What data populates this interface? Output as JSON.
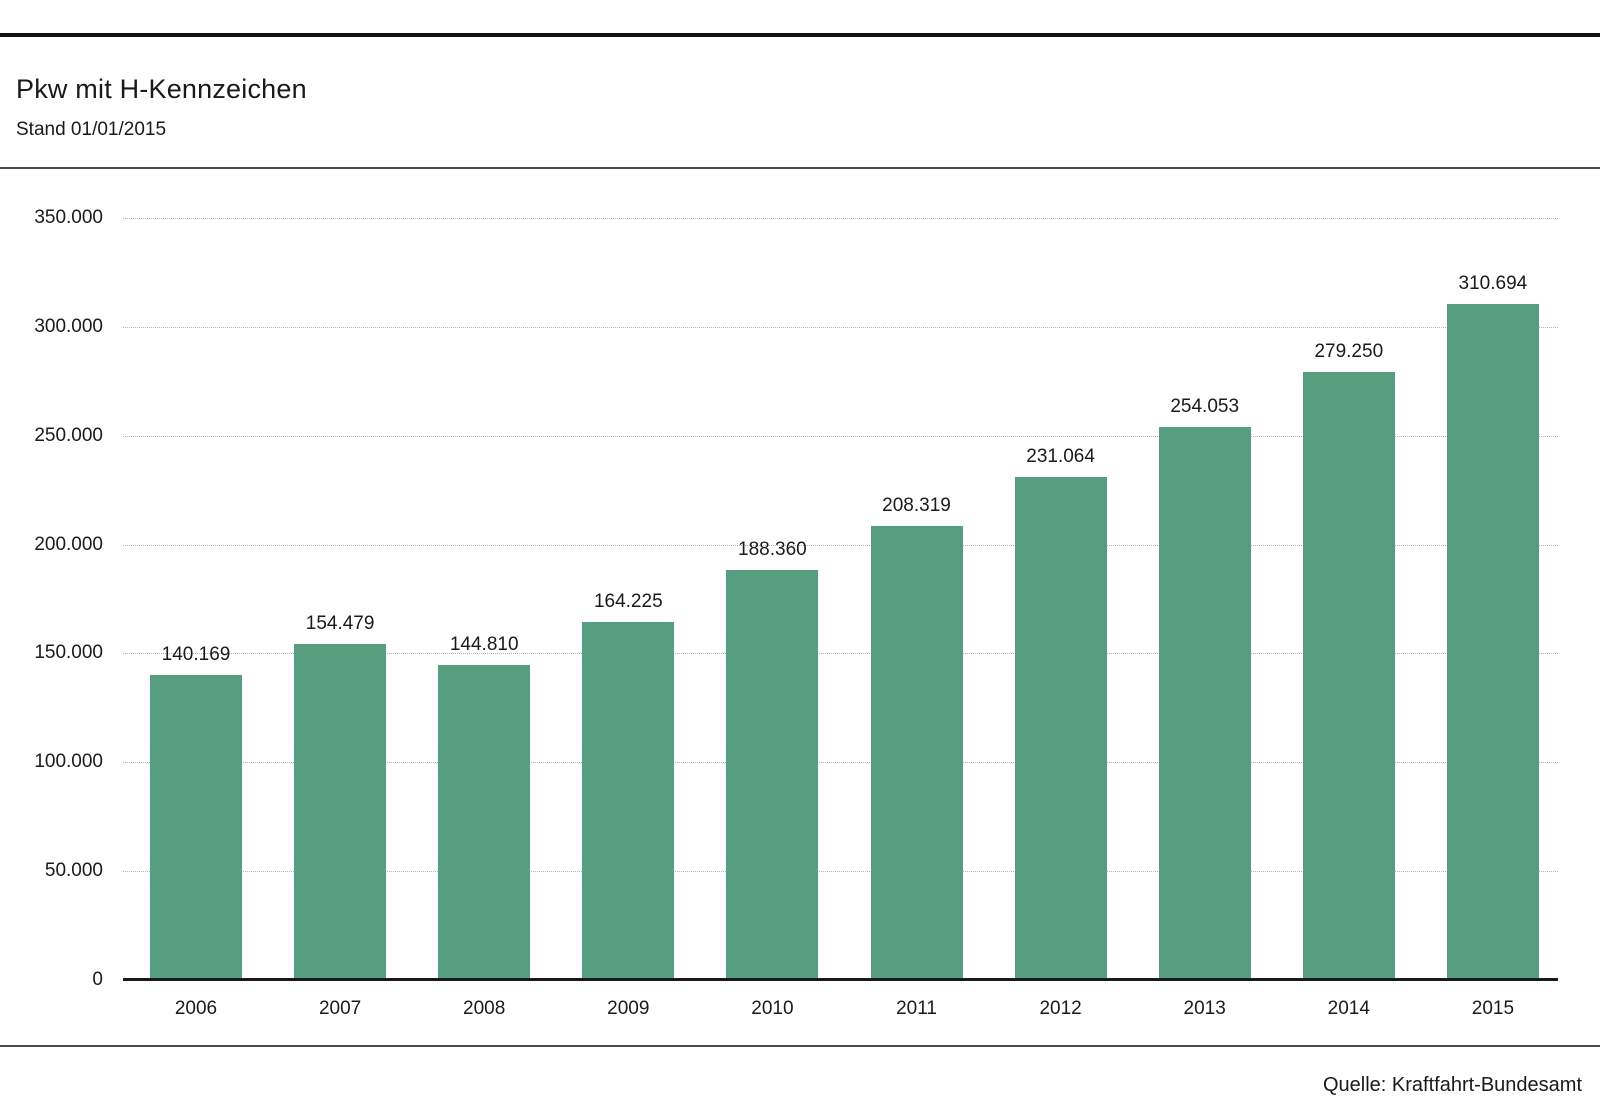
{
  "header": {
    "title": "Pkw mit H-Kennzeichen",
    "subtitle": "Stand 01/01/2015"
  },
  "footer": {
    "source": "Quelle: Kraftfahrt-Bundesamt"
  },
  "colors": {
    "bar": "#569e7f",
    "text": "#1a1a1a",
    "gridline": "#adb6b8",
    "axis_line": "#1a1a1a",
    "rule_dark": "#111111",
    "rule_gray": "#4a4a4a"
  },
  "chart_data": {
    "type": "bar",
    "title": "Pkw mit H-Kennzeichen",
    "subtitle": "Stand 01/01/2015",
    "source": "Quelle: Kraftfahrt-Bundesamt",
    "categories": [
      "2006",
      "2007",
      "2008",
      "2009",
      "2010",
      "2011",
      "2012",
      "2013",
      "2014",
      "2015"
    ],
    "values": [
      140169,
      154479,
      144810,
      164225,
      188360,
      208319,
      231064,
      254053,
      279250,
      310694
    ],
    "value_labels": [
      "140.169",
      "154.479",
      "144.810",
      "164.225",
      "188.360",
      "208.319",
      "231.064",
      "254.053",
      "279.250",
      "310.694"
    ],
    "xlabel": "",
    "ylabel": "",
    "ylim": [
      0,
      350000
    ],
    "ytick_values": [
      0,
      50000,
      100000,
      150000,
      200000,
      250000,
      300000,
      350000
    ],
    "ytick_labels": [
      "0",
      "50.000",
      "100.000",
      "150.000",
      "200.000",
      "250.000",
      "300.000",
      "350.000"
    ],
    "grid": "horizontal-dotted",
    "legend": "none",
    "bar_color": "#569e7f"
  }
}
